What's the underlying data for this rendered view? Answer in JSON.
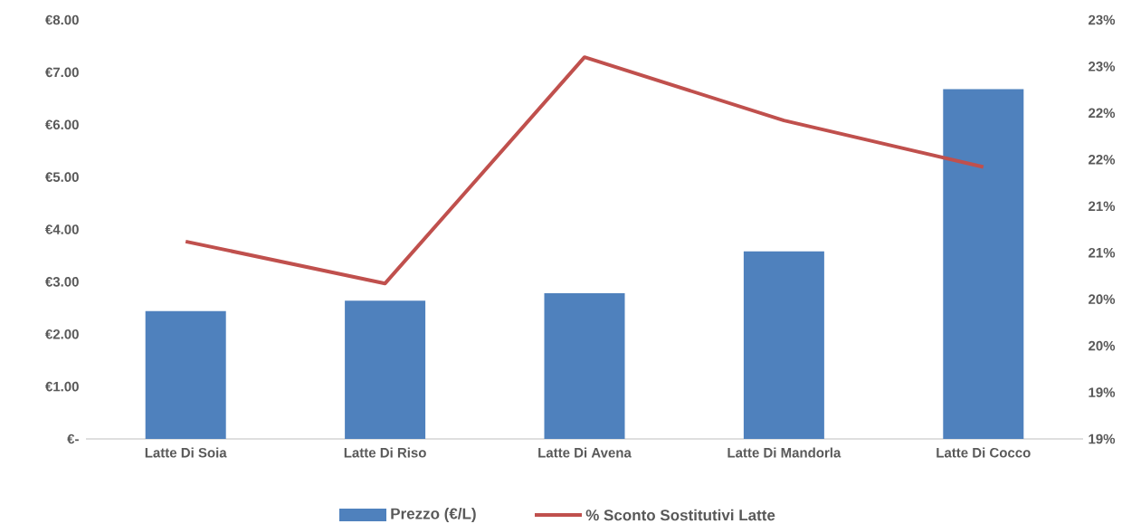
{
  "chart_data": {
    "type": "bar",
    "categories": [
      "Latte Di Soia",
      "Latte Di Riso",
      "Latte Di Avena",
      "Latte Di Mandorla",
      "Latte Di Cocco"
    ],
    "series": [
      {
        "name": "Prezzo (€/L)",
        "color": "#4f81bd",
        "values": [
          2.44,
          2.64,
          2.78,
          3.58,
          6.68
        ]
      },
      {
        "name": "% Sconto Sostitutivi Latte",
        "type": "line",
        "axis": "y2",
        "color": "#c0504d",
        "values": [
          20.62,
          20.17,
          22.6,
          21.92,
          21.42
        ]
      }
    ],
    "ylim": [
      0,
      8
    ],
    "yticks": [
      {
        "value": 0,
        "label": "€-"
      },
      {
        "value": 1,
        "label": "€1.00"
      },
      {
        "value": 2,
        "label": "€2.00"
      },
      {
        "value": 3,
        "label": "€3.00"
      },
      {
        "value": 4,
        "label": "€4.00"
      },
      {
        "value": 5,
        "label": "€5.00"
      },
      {
        "value": 6,
        "label": "€6.00"
      },
      {
        "value": 7,
        "label": "€7.00"
      },
      {
        "value": 8,
        "label": "€8.00"
      }
    ],
    "y2lim": [
      18.5,
      23.0
    ],
    "y2ticks": [
      {
        "value": 18.5,
        "label": "19%"
      },
      {
        "value": 19.0,
        "label": "19%"
      },
      {
        "value": 19.5,
        "label": "20%"
      },
      {
        "value": 20.0,
        "label": "20%"
      },
      {
        "value": 20.5,
        "label": "21%"
      },
      {
        "value": 21.0,
        "label": "21%"
      },
      {
        "value": 21.5,
        "label": "22%"
      },
      {
        "value": 22.0,
        "label": "22%"
      },
      {
        "value": 22.5,
        "label": "23%"
      },
      {
        "value": 23.0,
        "label": "23%"
      }
    ],
    "legend": "bottom",
    "grid": false
  }
}
